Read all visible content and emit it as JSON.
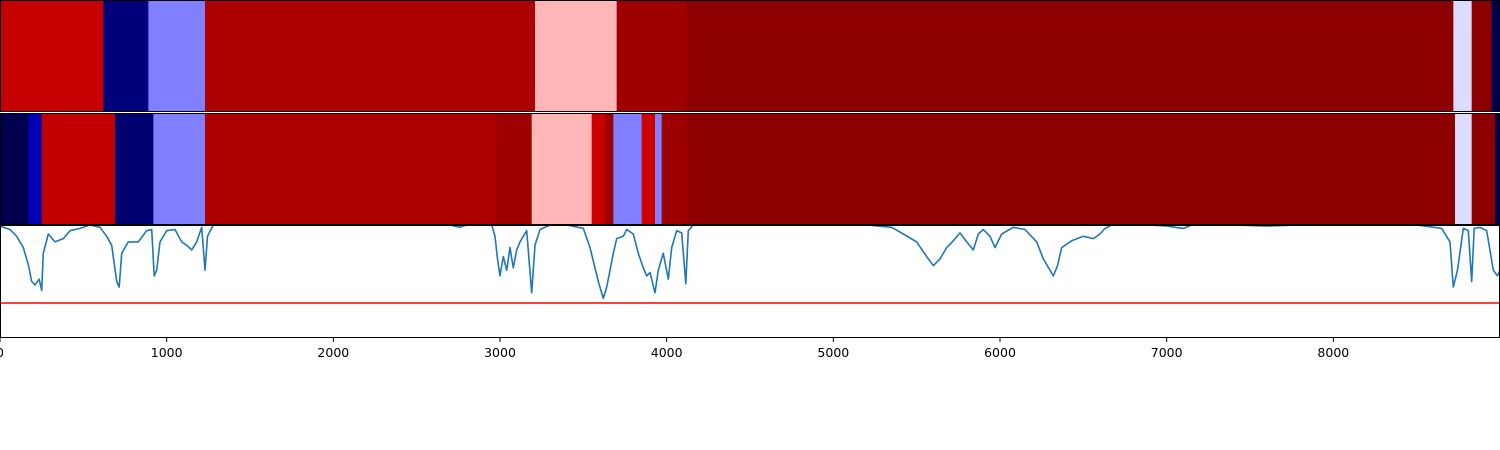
{
  "chart_data": [
    {
      "type": "heatmap",
      "colormap": "seismic",
      "segments": [
        {
          "start": 0,
          "end": 620,
          "color": "#c40000"
        },
        {
          "start": 620,
          "end": 890,
          "color": "#00007b"
        },
        {
          "start": 890,
          "end": 1230,
          "color": "#7f7fff"
        },
        {
          "start": 1230,
          "end": 3210,
          "color": "#ad0000"
        },
        {
          "start": 3210,
          "end": 3700,
          "color": "#ffb6b6"
        },
        {
          "start": 3700,
          "end": 4120,
          "color": "#9e0000"
        },
        {
          "start": 4120,
          "end": 8720,
          "color": "#8d0000"
        },
        {
          "start": 8720,
          "end": 8830,
          "color": "#dcdcff"
        },
        {
          "start": 8830,
          "end": 8950,
          "color": "#8d0000"
        },
        {
          "start": 8950,
          "end": 9000,
          "color": "#000050"
        }
      ]
    },
    {
      "type": "heatmap",
      "colormap": "seismic",
      "segments": [
        {
          "start": 0,
          "end": 170,
          "color": "#00004f"
        },
        {
          "start": 170,
          "end": 250,
          "color": "#0000b4"
        },
        {
          "start": 250,
          "end": 690,
          "color": "#c20000"
        },
        {
          "start": 690,
          "end": 920,
          "color": "#000070"
        },
        {
          "start": 920,
          "end": 1230,
          "color": "#7f7fff"
        },
        {
          "start": 1230,
          "end": 2980,
          "color": "#ad0000"
        },
        {
          "start": 2980,
          "end": 3190,
          "color": "#9e0000"
        },
        {
          "start": 3190,
          "end": 3550,
          "color": "#ffb6b6"
        },
        {
          "start": 3550,
          "end": 3630,
          "color": "#cc0000"
        },
        {
          "start": 3630,
          "end": 3680,
          "color": "#9e0000"
        },
        {
          "start": 3680,
          "end": 3850,
          "color": "#7f7fff"
        },
        {
          "start": 3850,
          "end": 3930,
          "color": "#cc0000"
        },
        {
          "start": 3930,
          "end": 3970,
          "color": "#7f7fff"
        },
        {
          "start": 3970,
          "end": 4120,
          "color": "#9e0000"
        },
        {
          "start": 4120,
          "end": 8730,
          "color": "#8d0000"
        },
        {
          "start": 8730,
          "end": 8830,
          "color": "#dcdcff"
        },
        {
          "start": 8830,
          "end": 8970,
          "color": "#8d0000"
        },
        {
          "start": 8970,
          "end": 9000,
          "color": "#000050"
        }
      ]
    },
    {
      "type": "line",
      "xlim": [
        0,
        9000
      ],
      "ylim": [
        0,
        1
      ],
      "xticks": [
        0,
        1000,
        2000,
        3000,
        4000,
        5000,
        6000,
        7000,
        8000
      ],
      "series": [
        {
          "color": "#1f77b4",
          "points": [
            [
              0,
              0.99
            ],
            [
              60,
              0.96
            ],
            [
              100,
              0.9
            ],
            [
              140,
              0.8
            ],
            [
              170,
              0.65
            ],
            [
              190,
              0.5
            ],
            [
              210,
              0.47
            ],
            [
              235,
              0.52
            ],
            [
              250,
              0.42
            ],
            [
              260,
              0.75
            ],
            [
              290,
              0.92
            ],
            [
              330,
              0.85
            ],
            [
              380,
              0.88
            ],
            [
              420,
              0.95
            ],
            [
              480,
              0.97
            ],
            [
              540,
              1.0
            ],
            [
              600,
              0.98
            ],
            [
              640,
              0.9
            ],
            [
              670,
              0.82
            ],
            [
              700,
              0.5
            ],
            [
              715,
              0.45
            ],
            [
              730,
              0.75
            ],
            [
              770,
              0.85
            ],
            [
              830,
              0.85
            ],
            [
              880,
              0.95
            ],
            [
              910,
              0.96
            ],
            [
              925,
              0.55
            ],
            [
              940,
              0.6
            ],
            [
              960,
              0.85
            ],
            [
              1000,
              0.95
            ],
            [
              1050,
              0.96
            ],
            [
              1090,
              0.85
            ],
            [
              1120,
              0.82
            ],
            [
              1150,
              0.78
            ],
            [
              1180,
              0.85
            ],
            [
              1210,
              0.98
            ],
            [
              1230,
              0.6
            ],
            [
              1245,
              0.9
            ],
            [
              1280,
              1.0
            ],
            [
              2700,
              1.0
            ],
            [
              2760,
              0.98
            ],
            [
              2800,
              1.0
            ],
            [
              2950,
              1.0
            ],
            [
              2970,
              0.9
            ],
            [
              2985,
              0.7
            ],
            [
              3000,
              0.55
            ],
            [
              3020,
              0.72
            ],
            [
              3040,
              0.6
            ],
            [
              3060,
              0.8
            ],
            [
              3080,
              0.62
            ],
            [
              3100,
              0.78
            ],
            [
              3120,
              0.85
            ],
            [
              3160,
              0.95
            ],
            [
              3190,
              0.4
            ],
            [
              3210,
              0.82
            ],
            [
              3240,
              0.96
            ],
            [
              3300,
              1.0
            ],
            [
              3400,
              1.0
            ],
            [
              3500,
              0.97
            ],
            [
              3540,
              0.8
            ],
            [
              3570,
              0.62
            ],
            [
              3590,
              0.5
            ],
            [
              3620,
              0.35
            ],
            [
              3640,
              0.45
            ],
            [
              3660,
              0.6
            ],
            [
              3680,
              0.75
            ],
            [
              3700,
              0.88
            ],
            [
              3740,
              0.9
            ],
            [
              3760,
              0.96
            ],
            [
              3800,
              0.92
            ],
            [
              3830,
              0.75
            ],
            [
              3860,
              0.62
            ],
            [
              3880,
              0.55
            ],
            [
              3900,
              0.58
            ],
            [
              3930,
              0.4
            ],
            [
              3950,
              0.6
            ],
            [
              3980,
              0.75
            ],
            [
              4010,
              0.52
            ],
            [
              4030,
              0.8
            ],
            [
              4060,
              0.95
            ],
            [
              4090,
              0.93
            ],
            [
              4115,
              0.48
            ],
            [
              4130,
              0.95
            ],
            [
              4160,
              1.0
            ],
            [
              5200,
              1.0
            ],
            [
              5350,
              0.98
            ],
            [
              5420,
              0.92
            ],
            [
              5500,
              0.85
            ],
            [
              5560,
              0.72
            ],
            [
              5600,
              0.64
            ],
            [
              5640,
              0.7
            ],
            [
              5680,
              0.8
            ],
            [
              5720,
              0.86
            ],
            [
              5760,
              0.93
            ],
            [
              5800,
              0.85
            ],
            [
              5840,
              0.78
            ],
            [
              5870,
              0.92
            ],
            [
              5900,
              0.96
            ],
            [
              5940,
              0.9
            ],
            [
              5970,
              0.8
            ],
            [
              6010,
              0.92
            ],
            [
              6080,
              0.98
            ],
            [
              6150,
              0.96
            ],
            [
              6220,
              0.85
            ],
            [
              6260,
              0.7
            ],
            [
              6300,
              0.6
            ],
            [
              6320,
              0.55
            ],
            [
              6345,
              0.64
            ],
            [
              6370,
              0.8
            ],
            [
              6430,
              0.86
            ],
            [
              6500,
              0.9
            ],
            [
              6560,
              0.88
            ],
            [
              6600,
              0.92
            ],
            [
              6630,
              0.97
            ],
            [
              6670,
              1.0
            ],
            [
              6900,
              1.0
            ],
            [
              7000,
              0.99
            ],
            [
              7100,
              0.97
            ],
            [
              7150,
              1.0
            ],
            [
              7400,
              1.0
            ],
            [
              7600,
              0.99
            ],
            [
              7800,
              1.0
            ],
            [
              8500,
              1.0
            ],
            [
              8650,
              0.97
            ],
            [
              8700,
              0.85
            ],
            [
              8720,
              0.45
            ],
            [
              8745,
              0.6
            ],
            [
              8780,
              0.97
            ],
            [
              8810,
              0.95
            ],
            [
              8830,
              0.5
            ],
            [
              8845,
              0.97
            ],
            [
              8880,
              0.98
            ],
            [
              8920,
              0.95
            ],
            [
              8960,
              0.6
            ],
            [
              8985,
              0.55
            ],
            [
              9000,
              0.6
            ]
          ]
        },
        {
          "color": "#ff0000",
          "y": 0.31
        }
      ]
    }
  ]
}
